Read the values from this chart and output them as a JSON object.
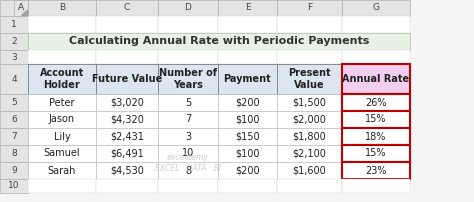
{
  "title": "Calculating Annual Rate with Periodic Payments",
  "title_bg": "#e8f2e4",
  "title_border": "#b0c8a0",
  "excel_header_bg": "#e8e8e8",
  "excel_header_color": "#444444",
  "excel_row_nums": [
    "1",
    "2",
    "3",
    "4",
    "5",
    "6",
    "7",
    "8",
    "9",
    "10"
  ],
  "excel_col_letters": [
    "A",
    "B",
    "C",
    "D",
    "E",
    "F",
    "G"
  ],
  "col_headers": [
    "Account\nHolder",
    "Future Value",
    "Number of\nYears",
    "Payment",
    "Present\nValue",
    "Annual Rate"
  ],
  "col_header_bg": [
    "#dce6f1",
    "#dce6f1",
    "#dce6f1",
    "#dce6f1",
    "#dce6f1",
    "#f2ceef"
  ],
  "rows": [
    [
      "Peter",
      "$3,020",
      "5",
      "$200",
      "$1,500",
      "26%"
    ],
    [
      "Jason",
      "$4,320",
      "7",
      "$100",
      "$2,000",
      "15%"
    ],
    [
      "Lily",
      "$2,431",
      "3",
      "$150",
      "$1,800",
      "18%"
    ],
    [
      "Samuel",
      "$6,491",
      "10",
      "$100",
      "$2,100",
      "15%"
    ],
    [
      "Sarah",
      "$4,530",
      "8",
      "$200",
      "$1,600",
      "23%"
    ]
  ],
  "annual_rate_border_color": "#c00000",
  "grid_color": "#c0c0c0",
  "cell_bg": "#ffffff",
  "watermark": "exceldemy\nEXCEL - DATA - BI",
  "figsize": [
    4.74,
    2.02
  ],
  "dpi": 100
}
